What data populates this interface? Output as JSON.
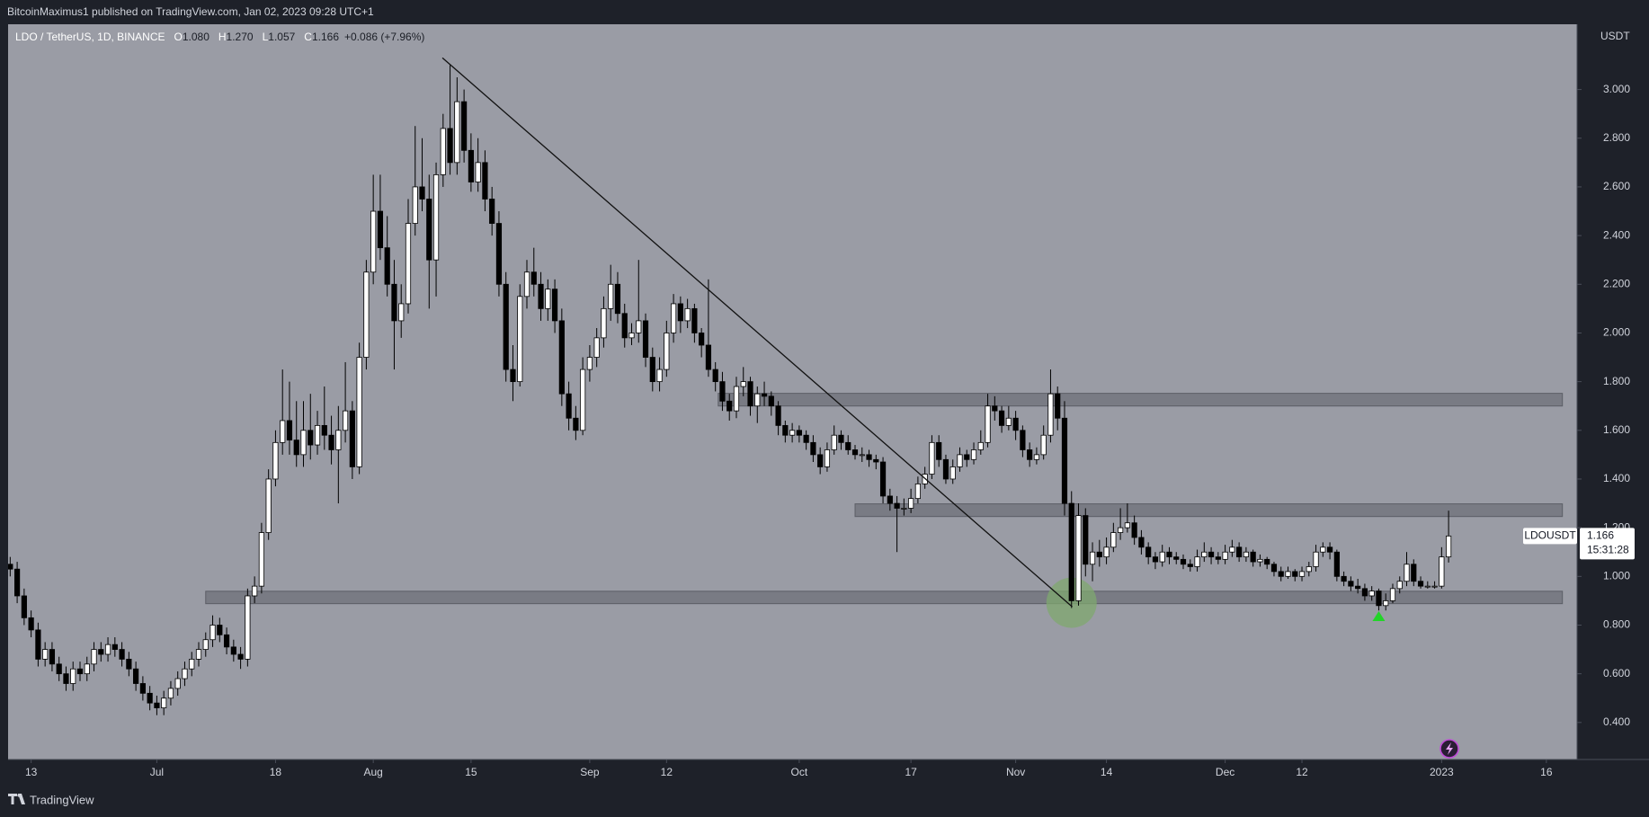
{
  "header": {
    "publisher": "BitcoinMaximus1 published on TradingView.com, Jan 02, 2023 09:28 UTC+1"
  },
  "footer": {
    "brand": "TradingView"
  },
  "chart_data": {
    "type": "candlestick",
    "symbol": "LDO / TetherUS, 1D, BINANCE",
    "legend": [
      {
        "key": "O",
        "value": "1.080"
      },
      {
        "key": "H",
        "value": "1.270"
      },
      {
        "key": "L",
        "value": "1.057"
      },
      {
        "key": "C",
        "value": "1.166"
      }
    ],
    "change": "+0.086 (+7.96%)",
    "currency": "USDT",
    "last_price": {
      "ticker": "LDOUSDT",
      "price": "1.166",
      "countdown": "15:31:28"
    },
    "up_color": "#ffffff",
    "down_color": "#000000",
    "background": "#9a9ca5",
    "grid": false,
    "xlim": [
      -0.3,
      224.4
    ],
    "xticks": [
      {
        "value": 3,
        "label": "13"
      },
      {
        "value": 21,
        "label": "Jul"
      },
      {
        "value": 38,
        "label": "18"
      },
      {
        "value": 52,
        "label": "Aug"
      },
      {
        "value": 66,
        "label": "15"
      },
      {
        "value": 83,
        "label": "Sep"
      },
      {
        "value": 94,
        "label": "12"
      },
      {
        "value": 113,
        "label": "Oct"
      },
      {
        "value": 129,
        "label": "17"
      },
      {
        "value": 144,
        "label": "Nov"
      },
      {
        "value": 157,
        "label": "14"
      },
      {
        "value": 174,
        "label": "Dec"
      },
      {
        "value": 185,
        "label": "12"
      },
      {
        "value": 205,
        "label": "2023"
      },
      {
        "value": 220,
        "label": "16"
      }
    ],
    "ylim": [
      0.248,
      3.268
    ],
    "yticks": [
      {
        "value": 0.4,
        "label": "0.400"
      },
      {
        "value": 0.6,
        "label": "0.600"
      },
      {
        "value": 0.8,
        "label": "0.800"
      },
      {
        "value": 1.0,
        "label": "1.000"
      },
      {
        "value": 1.2,
        "label": "1.200"
      },
      {
        "value": 1.4,
        "label": "1.400"
      },
      {
        "value": 1.6,
        "label": "1.600"
      },
      {
        "value": 1.8,
        "label": "1.800"
      },
      {
        "value": 2.0,
        "label": "2.000"
      },
      {
        "value": 2.2,
        "label": "2.200"
      },
      {
        "value": 2.4,
        "label": "2.400"
      },
      {
        "value": 2.6,
        "label": "2.600"
      },
      {
        "value": 2.8,
        "label": "2.800"
      },
      {
        "value": 3.0,
        "label": "3.000"
      }
    ],
    "zones": [
      {
        "from": 101.4,
        "to": 222.3,
        "low": 1.7,
        "high": 1.752
      },
      {
        "from": 121,
        "to": 222.3,
        "low": 1.246,
        "high": 1.298
      },
      {
        "from": 28,
        "to": 222.3,
        "low": 0.888,
        "high": 0.939
      }
    ],
    "trendline": {
      "x": [
        61.9,
        152.1
      ],
      "y": [
        3.13,
        0.875
      ]
    },
    "highlight": {
      "x": 152,
      "y": 0.892
    },
    "arrow": {
      "x": 196,
      "y": 0.835
    },
    "ohlc": [
      [
        1.05,
        1.08,
        1.0,
        1.03
      ],
      [
        1.03,
        1.06,
        0.89,
        0.92
      ],
      [
        0.92,
        0.95,
        0.8,
        0.83
      ],
      [
        0.83,
        0.86,
        0.75,
        0.78
      ],
      [
        0.78,
        0.81,
        0.63,
        0.66
      ],
      [
        0.66,
        0.73,
        0.63,
        0.7
      ],
      [
        0.7,
        0.73,
        0.61,
        0.64
      ],
      [
        0.64,
        0.67,
        0.57,
        0.6
      ],
      [
        0.6,
        0.63,
        0.53,
        0.56
      ],
      [
        0.56,
        0.65,
        0.53,
        0.62
      ],
      [
        0.62,
        0.65,
        0.57,
        0.6
      ],
      [
        0.6,
        0.67,
        0.57,
        0.64
      ],
      [
        0.64,
        0.73,
        0.61,
        0.7
      ],
      [
        0.7,
        0.73,
        0.65,
        0.68
      ],
      [
        0.68,
        0.75,
        0.65,
        0.72
      ],
      [
        0.72,
        0.75,
        0.67,
        0.7
      ],
      [
        0.7,
        0.73,
        0.63,
        0.66
      ],
      [
        0.66,
        0.69,
        0.59,
        0.62
      ],
      [
        0.62,
        0.65,
        0.53,
        0.56
      ],
      [
        0.56,
        0.59,
        0.49,
        0.52
      ],
      [
        0.52,
        0.55,
        0.45,
        0.48
      ],
      [
        0.48,
        0.51,
        0.43,
        0.46
      ],
      [
        0.46,
        0.53,
        0.43,
        0.5
      ],
      [
        0.5,
        0.57,
        0.47,
        0.54
      ],
      [
        0.54,
        0.61,
        0.51,
        0.58
      ],
      [
        0.58,
        0.65,
        0.55,
        0.62
      ],
      [
        0.62,
        0.69,
        0.59,
        0.66
      ],
      [
        0.66,
        0.73,
        0.63,
        0.7
      ],
      [
        0.7,
        0.77,
        0.67,
        0.74
      ],
      [
        0.74,
        0.84,
        0.71,
        0.8
      ],
      [
        0.8,
        0.83,
        0.73,
        0.76
      ],
      [
        0.76,
        0.79,
        0.68,
        0.71
      ],
      [
        0.71,
        0.74,
        0.65,
        0.68
      ],
      [
        0.68,
        0.71,
        0.62,
        0.66
      ],
      [
        0.66,
        0.95,
        0.63,
        0.92
      ],
      [
        0.92,
        1.0,
        0.89,
        0.96
      ],
      [
        0.96,
        1.22,
        0.93,
        1.18
      ],
      [
        1.18,
        1.44,
        1.15,
        1.4
      ],
      [
        1.4,
        1.6,
        1.37,
        1.55
      ],
      [
        1.55,
        1.85,
        1.5,
        1.64
      ],
      [
        1.64,
        1.8,
        1.5,
        1.56
      ],
      [
        1.56,
        1.72,
        1.45,
        1.5
      ],
      [
        1.5,
        1.72,
        1.45,
        1.6
      ],
      [
        1.6,
        1.75,
        1.48,
        1.54
      ],
      [
        1.54,
        1.68,
        1.5,
        1.62
      ],
      [
        1.62,
        1.78,
        1.52,
        1.58
      ],
      [
        1.58,
        1.66,
        1.46,
        1.52
      ],
      [
        1.52,
        1.7,
        1.3,
        1.6
      ],
      [
        1.6,
        1.88,
        1.55,
        1.68
      ],
      [
        1.68,
        1.72,
        1.4,
        1.45
      ],
      [
        1.45,
        1.96,
        1.42,
        1.9
      ],
      [
        1.9,
        2.3,
        1.85,
        2.25
      ],
      [
        2.25,
        2.65,
        2.2,
        2.5
      ],
      [
        2.5,
        2.65,
        2.3,
        2.35
      ],
      [
        2.35,
        2.48,
        2.15,
        2.2
      ],
      [
        2.2,
        2.3,
        1.85,
        2.05
      ],
      [
        2.05,
        2.2,
        1.98,
        2.12
      ],
      [
        2.12,
        2.55,
        2.08,
        2.45
      ],
      [
        2.45,
        2.85,
        2.4,
        2.6
      ],
      [
        2.6,
        2.8,
        2.5,
        2.55
      ],
      [
        2.55,
        2.65,
        2.1,
        2.3
      ],
      [
        2.3,
        2.7,
        2.15,
        2.65
      ],
      [
        2.65,
        2.9,
        2.6,
        2.84
      ],
      [
        2.84,
        3.1,
        2.65,
        2.7
      ],
      [
        2.7,
        3.05,
        2.65,
        2.95
      ],
      [
        2.95,
        3.0,
        2.7,
        2.75
      ],
      [
        2.75,
        2.82,
        2.58,
        2.62
      ],
      [
        2.62,
        2.8,
        2.58,
        2.7
      ],
      [
        2.7,
        2.75,
        2.5,
        2.55
      ],
      [
        2.55,
        2.6,
        2.4,
        2.45
      ],
      [
        2.45,
        2.5,
        2.15,
        2.2
      ],
      [
        2.2,
        2.25,
        1.8,
        1.85
      ],
      [
        1.85,
        1.95,
        1.72,
        1.8
      ],
      [
        1.8,
        2.2,
        1.78,
        2.15
      ],
      [
        2.15,
        2.3,
        2.1,
        2.25
      ],
      [
        2.25,
        2.35,
        2.15,
        2.2
      ],
      [
        2.2,
        2.25,
        2.05,
        2.1
      ],
      [
        2.1,
        2.22,
        2.05,
        2.18
      ],
      [
        2.18,
        2.22,
        2.0,
        2.05
      ],
      [
        2.05,
        2.1,
        1.7,
        1.75
      ],
      [
        1.75,
        1.8,
        1.6,
        1.65
      ],
      [
        1.65,
        1.7,
        1.56,
        1.6
      ],
      [
        1.6,
        1.9,
        1.58,
        1.85
      ],
      [
        1.85,
        1.95,
        1.8,
        1.9
      ],
      [
        1.9,
        2.02,
        1.86,
        1.98
      ],
      [
        1.98,
        2.15,
        1.94,
        2.1
      ],
      [
        2.1,
        2.28,
        2.05,
        2.2
      ],
      [
        2.2,
        2.25,
        2.04,
        2.08
      ],
      [
        2.08,
        2.12,
        1.94,
        1.98
      ],
      [
        1.98,
        2.04,
        1.95,
        2.0
      ],
      [
        2.0,
        2.3,
        1.96,
        2.05
      ],
      [
        2.05,
        2.08,
        1.86,
        1.9
      ],
      [
        1.9,
        1.94,
        1.76,
        1.8
      ],
      [
        1.8,
        1.9,
        1.76,
        1.85
      ],
      [
        1.85,
        2.05,
        1.82,
        2.0
      ],
      [
        2.0,
        2.16,
        1.96,
        2.12
      ],
      [
        2.12,
        2.15,
        2.0,
        2.05
      ],
      [
        2.05,
        2.14,
        2.02,
        2.1
      ],
      [
        2.1,
        2.12,
        1.96,
        2.0
      ],
      [
        2.0,
        2.02,
        1.9,
        1.95
      ],
      [
        1.95,
        2.22,
        1.82,
        1.85
      ],
      [
        1.85,
        1.88,
        1.76,
        1.8
      ],
      [
        1.8,
        1.84,
        1.68,
        1.72
      ],
      [
        1.72,
        1.75,
        1.64,
        1.68
      ],
      [
        1.68,
        1.82,
        1.65,
        1.78
      ],
      [
        1.78,
        1.86,
        1.74,
        1.8
      ],
      [
        1.8,
        1.82,
        1.66,
        1.7
      ],
      [
        1.7,
        1.78,
        1.63,
        1.75
      ],
      [
        1.75,
        1.8,
        1.7,
        1.74
      ],
      [
        1.74,
        1.76,
        1.66,
        1.7
      ],
      [
        1.7,
        1.72,
        1.58,
        1.62
      ],
      [
        1.62,
        1.64,
        1.55,
        1.58
      ],
      [
        1.58,
        1.63,
        1.55,
        1.6
      ],
      [
        1.6,
        1.62,
        1.55,
        1.58
      ],
      [
        1.58,
        1.6,
        1.52,
        1.55
      ],
      [
        1.55,
        1.58,
        1.47,
        1.5
      ],
      [
        1.5,
        1.53,
        1.42,
        1.45
      ],
      [
        1.45,
        1.55,
        1.43,
        1.52
      ],
      [
        1.52,
        1.62,
        1.5,
        1.58
      ],
      [
        1.58,
        1.6,
        1.52,
        1.55
      ],
      [
        1.55,
        1.58,
        1.5,
        1.52
      ],
      [
        1.52,
        1.54,
        1.48,
        1.5
      ],
      [
        1.5,
        1.53,
        1.47,
        1.5
      ],
      [
        1.5,
        1.52,
        1.45,
        1.48
      ],
      [
        1.48,
        1.5,
        1.44,
        1.47
      ],
      [
        1.47,
        1.49,
        1.3,
        1.33
      ],
      [
        1.33,
        1.36,
        1.27,
        1.3
      ],
      [
        1.3,
        1.33,
        1.1,
        1.28
      ],
      [
        1.28,
        1.32,
        1.25,
        1.28
      ],
      [
        1.28,
        1.36,
        1.26,
        1.32
      ],
      [
        1.32,
        1.41,
        1.3,
        1.38
      ],
      [
        1.38,
        1.45,
        1.36,
        1.42
      ],
      [
        1.42,
        1.58,
        1.4,
        1.55
      ],
      [
        1.55,
        1.58,
        1.45,
        1.48
      ],
      [
        1.48,
        1.5,
        1.38,
        1.4
      ],
      [
        1.4,
        1.48,
        1.38,
        1.45
      ],
      [
        1.45,
        1.53,
        1.43,
        1.5
      ],
      [
        1.5,
        1.52,
        1.45,
        1.48
      ],
      [
        1.48,
        1.55,
        1.46,
        1.52
      ],
      [
        1.52,
        1.6,
        1.5,
        1.55
      ],
      [
        1.55,
        1.75,
        1.53,
        1.7
      ],
      [
        1.7,
        1.74,
        1.64,
        1.68
      ],
      [
        1.68,
        1.7,
        1.59,
        1.62
      ],
      [
        1.62,
        1.7,
        1.6,
        1.65
      ],
      [
        1.65,
        1.68,
        1.56,
        1.6
      ],
      [
        1.6,
        1.62,
        1.49,
        1.52
      ],
      [
        1.52,
        1.55,
        1.45,
        1.48
      ],
      [
        1.48,
        1.53,
        1.46,
        1.5
      ],
      [
        1.5,
        1.62,
        1.48,
        1.58
      ],
      [
        1.58,
        1.85,
        1.55,
        1.75
      ],
      [
        1.75,
        1.78,
        1.6,
        1.65
      ],
      [
        1.65,
        1.72,
        1.25,
        1.3
      ],
      [
        1.3,
        1.35,
        0.87,
        0.9
      ],
      [
        0.9,
        1.3,
        0.88,
        1.25
      ],
      [
        1.25,
        1.28,
        1.0,
        1.05
      ],
      [
        1.05,
        1.14,
        0.98,
        1.1
      ],
      [
        1.1,
        1.15,
        1.04,
        1.08
      ],
      [
        1.08,
        1.16,
        1.05,
        1.12
      ],
      [
        1.12,
        1.22,
        1.1,
        1.18
      ],
      [
        1.18,
        1.28,
        1.15,
        1.2
      ],
      [
        1.2,
        1.3,
        1.18,
        1.22
      ],
      [
        1.22,
        1.25,
        1.13,
        1.16
      ],
      [
        1.16,
        1.19,
        1.09,
        1.12
      ],
      [
        1.12,
        1.14,
        1.05,
        1.08
      ],
      [
        1.08,
        1.1,
        1.03,
        1.06
      ],
      [
        1.06,
        1.13,
        1.04,
        1.1
      ],
      [
        1.1,
        1.12,
        1.05,
        1.08
      ],
      [
        1.08,
        1.1,
        1.05,
        1.07
      ],
      [
        1.07,
        1.09,
        1.03,
        1.05
      ],
      [
        1.05,
        1.07,
        1.02,
        1.04
      ],
      [
        1.04,
        1.11,
        1.02,
        1.08
      ],
      [
        1.08,
        1.14,
        1.06,
        1.1
      ],
      [
        1.1,
        1.12,
        1.05,
        1.08
      ],
      [
        1.08,
        1.1,
        1.05,
        1.07
      ],
      [
        1.07,
        1.13,
        1.05,
        1.1
      ],
      [
        1.1,
        1.15,
        1.08,
        1.12
      ],
      [
        1.12,
        1.14,
        1.06,
        1.08
      ],
      [
        1.08,
        1.12,
        1.06,
        1.1
      ],
      [
        1.1,
        1.11,
        1.04,
        1.06
      ],
      [
        1.06,
        1.09,
        1.04,
        1.07
      ],
      [
        1.07,
        1.08,
        1.03,
        1.05
      ],
      [
        1.05,
        1.06,
        1.0,
        1.02
      ],
      [
        1.02,
        1.04,
        0.98,
        1.0
      ],
      [
        1.0,
        1.04,
        0.99,
        1.02
      ],
      [
        1.02,
        1.03,
        0.98,
        1.0
      ],
      [
        1.0,
        1.04,
        0.98,
        1.02
      ],
      [
        1.02,
        1.06,
        1.0,
        1.04
      ],
      [
        1.04,
        1.13,
        1.02,
        1.1
      ],
      [
        1.1,
        1.14,
        1.08,
        1.12
      ],
      [
        1.12,
        1.14,
        1.07,
        1.1
      ],
      [
        1.1,
        1.11,
        0.98,
        1.0
      ],
      [
        1.0,
        1.02,
        0.96,
        0.98
      ],
      [
        0.98,
        1.0,
        0.94,
        0.96
      ],
      [
        0.96,
        0.99,
        0.93,
        0.95
      ],
      [
        0.95,
        0.97,
        0.9,
        0.92
      ],
      [
        0.92,
        0.96,
        0.9,
        0.94
      ],
      [
        0.94,
        0.95,
        0.86,
        0.88
      ],
      [
        0.88,
        0.93,
        0.86,
        0.9
      ],
      [
        0.9,
        0.97,
        0.89,
        0.95
      ],
      [
        0.95,
        1.0,
        0.93,
        0.98
      ],
      [
        0.98,
        1.1,
        0.96,
        1.05
      ],
      [
        1.05,
        1.07,
        0.96,
        0.98
      ],
      [
        0.98,
        1.0,
        0.95,
        0.96
      ],
      [
        0.96,
        0.98,
        0.95,
        0.96
      ],
      [
        0.96,
        0.98,
        0.95,
        0.96
      ],
      [
        0.96,
        1.12,
        0.95,
        1.08
      ],
      [
        1.08,
        1.27,
        1.057,
        1.166
      ]
    ]
  }
}
